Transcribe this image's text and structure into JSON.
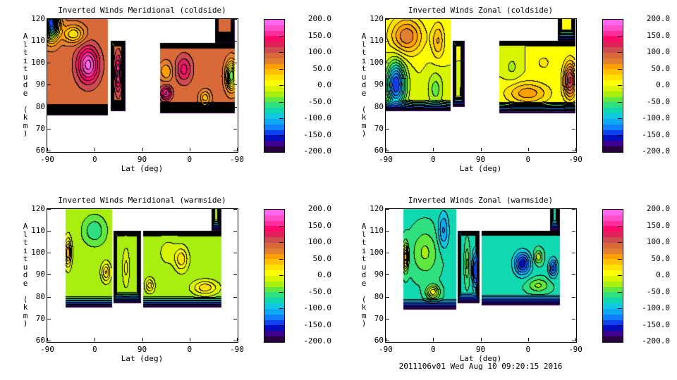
{
  "chart_data": [
    {
      "type": "heatmap",
      "title": "Inverted Winds Meridional (coldside)",
      "xlabel": "Lat (deg)",
      "ylabel": "Altitude (km)",
      "xticks": [
        "-90",
        "0",
        "90",
        "0",
        "-90"
      ],
      "yticks": [
        "60",
        "70",
        "80",
        "90",
        "100",
        "110",
        "120"
      ],
      "ylim": [
        59.6,
        120
      ],
      "base": 90,
      "regions": [
        {
          "s": [
            0,
            115
          ],
          "alt": [
            76,
            120
          ],
          "side": false
        },
        {
          "s": [
            120,
            149
          ],
          "alt": [
            78,
            110
          ],
          "side": true
        },
        {
          "s": [
            214,
            356
          ],
          "alt": [
            77,
            109
          ],
          "side": false
        },
        {
          "s": [
            318,
            356
          ],
          "alt": [
            109,
            120
          ],
          "side": true
        }
      ],
      "features": [
        {
          "s": 78,
          "alt": 99,
          "amp": 100,
          "ws": 20,
          "wa": 8
        },
        {
          "s": 8,
          "alt": 118,
          "amp": -240,
          "ws": 14,
          "wa": 7
        },
        {
          "s": 50,
          "alt": 113,
          "amp": -70,
          "ws": 20,
          "wa": 4
        },
        {
          "s": 350,
          "alt": 94,
          "amp": -140,
          "ws": 10,
          "wa": 6
        },
        {
          "s": 226,
          "alt": 96,
          "amp": -40,
          "ws": 12,
          "wa": 4
        },
        {
          "s": 226,
          "alt": 86,
          "amp": 80,
          "ws": 10,
          "wa": 3
        },
        {
          "s": 260,
          "alt": 97,
          "amp": 50,
          "ws": 15,
          "wa": 6
        },
        {
          "s": 300,
          "alt": 84,
          "amp": -50,
          "ws": 10,
          "wa": 3
        },
        {
          "s": 135,
          "alt": 95,
          "amp": 80,
          "ws": 6,
          "wa": 8
        }
      ]
    },
    {
      "type": "heatmap",
      "title": "Inverted Winds Zonal (coldside)",
      "xlabel": "Lat (deg)",
      "ylabel": "Altitude (km)",
      "xticks": [
        "-90",
        "0",
        "90",
        "0",
        "-90"
      ],
      "yticks": [
        "60",
        "70",
        "80",
        "90",
        "100",
        "110",
        "120"
      ],
      "ylim": [
        59.6,
        120
      ],
      "base": 0,
      "regions": [
        {
          "s": [
            0,
            123
          ],
          "alt": [
            78,
            120
          ],
          "side": false
        },
        {
          "s": [
            127,
            150
          ],
          "alt": [
            80,
            110
          ],
          "side": true
        },
        {
          "s": [
            216,
            360
          ],
          "alt": [
            77,
            110
          ],
          "side": false
        },
        {
          "s": [
            327,
            360
          ],
          "alt": [
            110,
            120
          ],
          "side": true
        }
      ],
      "features": [
        {
          "s": 40,
          "alt": 112,
          "amp": 80,
          "ws": 30,
          "wa": 8
        },
        {
          "s": 20,
          "alt": 90,
          "amp": -150,
          "ws": 18,
          "wa": 10
        },
        {
          "s": 100,
          "alt": 110,
          "amp": 50,
          "ws": 12,
          "wa": 8
        },
        {
          "s": 95,
          "alt": 88,
          "amp": -40,
          "ws": 15,
          "wa": 8
        },
        {
          "s": 270,
          "alt": 86,
          "amp": 60,
          "ws": 40,
          "wa": 5
        },
        {
          "s": 240,
          "alt": 98,
          "amp": -20,
          "ws": 15,
          "wa": 6
        },
        {
          "s": 350,
          "alt": 92,
          "amp": 120,
          "ws": 12,
          "wa": 8
        },
        {
          "s": 300,
          "alt": 100,
          "amp": 20,
          "ws": 20,
          "wa": 5
        }
      ]
    },
    {
      "type": "heatmap",
      "title": "Inverted Winds Meridional (warmside)",
      "xlabel": "Lat (deg)",
      "ylabel": "Altitude (km)",
      "xticks": [
        "-90",
        "0",
        "90",
        "0",
        "-90"
      ],
      "yticks": [
        "60",
        "70",
        "80",
        "90",
        "100",
        "110",
        "120"
      ],
      "ylim": [
        59.6,
        120
      ],
      "base": -25,
      "regions": [
        {
          "s": [
            35,
            123
          ],
          "alt": [
            75,
            120
          ],
          "side": false
        },
        {
          "s": [
            126,
            178
          ],
          "alt": [
            77,
            110
          ],
          "side": true
        },
        {
          "s": [
            182,
            330
          ],
          "alt": [
            75,
            110
          ],
          "side": false
        },
        {
          "s": [
            312,
            330
          ],
          "alt": [
            110,
            120
          ],
          "side": true
        }
      ],
      "features": [
        {
          "s": 40,
          "alt": 100,
          "amp": 90,
          "ws": 6,
          "wa": 6
        },
        {
          "s": 112,
          "alt": 91,
          "amp": 60,
          "ws": 8,
          "wa": 4
        },
        {
          "s": 90,
          "alt": 110,
          "amp": -40,
          "ws": 20,
          "wa": 6
        },
        {
          "s": 255,
          "alt": 97,
          "amp": 55,
          "ws": 12,
          "wa": 5
        },
        {
          "s": 300,
          "alt": 84,
          "amp": 55,
          "ws": 22,
          "wa": 3
        },
        {
          "s": 195,
          "alt": 85,
          "amp": 50,
          "ws": 8,
          "wa": 3
        },
        {
          "s": 230,
          "alt": 100,
          "amp": 20,
          "ws": 15,
          "wa": 5
        },
        {
          "s": 150,
          "alt": 93,
          "amp": 30,
          "ws": 6,
          "wa": 8
        }
      ]
    },
    {
      "type": "heatmap",
      "title": "Inverted Winds Zonal (warmside)",
      "xlabel": "Lat (deg)",
      "ylabel": "Altitude (km)",
      "xticks": [
        "-90",
        "0",
        "90",
        "0",
        "-90"
      ],
      "yticks": [
        "60",
        "70",
        "80",
        "90",
        "100",
        "110",
        "120"
      ],
      "ylim": [
        59.6,
        120
      ],
      "base": -70,
      "regions": [
        {
          "s": [
            33,
            134
          ],
          "alt": [
            74,
            120
          ],
          "side": false
        },
        {
          "s": [
            137,
            178
          ],
          "alt": [
            77,
            110
          ],
          "side": true
        },
        {
          "s": [
            182,
            330
          ],
          "alt": [
            76,
            110
          ],
          "side": false
        },
        {
          "s": [
            312,
            330
          ],
          "alt": [
            110,
            120
          ],
          "side": true
        }
      ],
      "features": [
        {
          "s": 38,
          "alt": 98,
          "amp": 110,
          "ws": 5,
          "wa": 6
        },
        {
          "s": 90,
          "alt": 82,
          "amp": 80,
          "ws": 12,
          "wa": 3
        },
        {
          "s": 75,
          "alt": 100,
          "amp": 40,
          "ws": 25,
          "wa": 10
        },
        {
          "s": 110,
          "alt": 110,
          "amp": -50,
          "ws": 10,
          "wa": 8
        },
        {
          "s": 260,
          "alt": 95,
          "amp": -90,
          "ws": 15,
          "wa": 5
        },
        {
          "s": 318,
          "alt": 93,
          "amp": -70,
          "ws": 8,
          "wa": 4
        },
        {
          "s": 290,
          "alt": 98,
          "amp": 50,
          "ws": 8,
          "wa": 3
        },
        {
          "s": 290,
          "alt": 85,
          "amp": 40,
          "ws": 20,
          "wa": 3
        },
        {
          "s": 155,
          "alt": 95,
          "amp": 40,
          "ws": 4,
          "wa": 8
        },
        {
          "s": 170,
          "alt": 92,
          "amp": -80,
          "ws": 5,
          "wa": 8
        }
      ]
    }
  ],
  "colorbar": {
    "labels": [
      "200.0",
      "150.0",
      "100.0",
      "50.0",
      "0.0",
      "-50.0",
      "-100.0",
      "-150.0",
      "-200.0"
    ],
    "min": -200,
    "max": 200,
    "colors": [
      "#ff66ee",
      "#ff4fc8",
      "#ff2da0",
      "#ff0a6a",
      "#e0205a",
      "#cc4c50",
      "#d86a3a",
      "#e08030",
      "#ffa000",
      "#ffc000",
      "#ffe000",
      "#ffff00",
      "#d8f500",
      "#a8ee10",
      "#60e840",
      "#30e080",
      "#10d8b0",
      "#10c8e0",
      "#10a8f0",
      "#1080ff",
      "#1040f0",
      "#0010c0",
      "#400090",
      "#280040"
    ]
  },
  "footer": "2011106v01 Wed Aug 10 09:20:15 2016"
}
